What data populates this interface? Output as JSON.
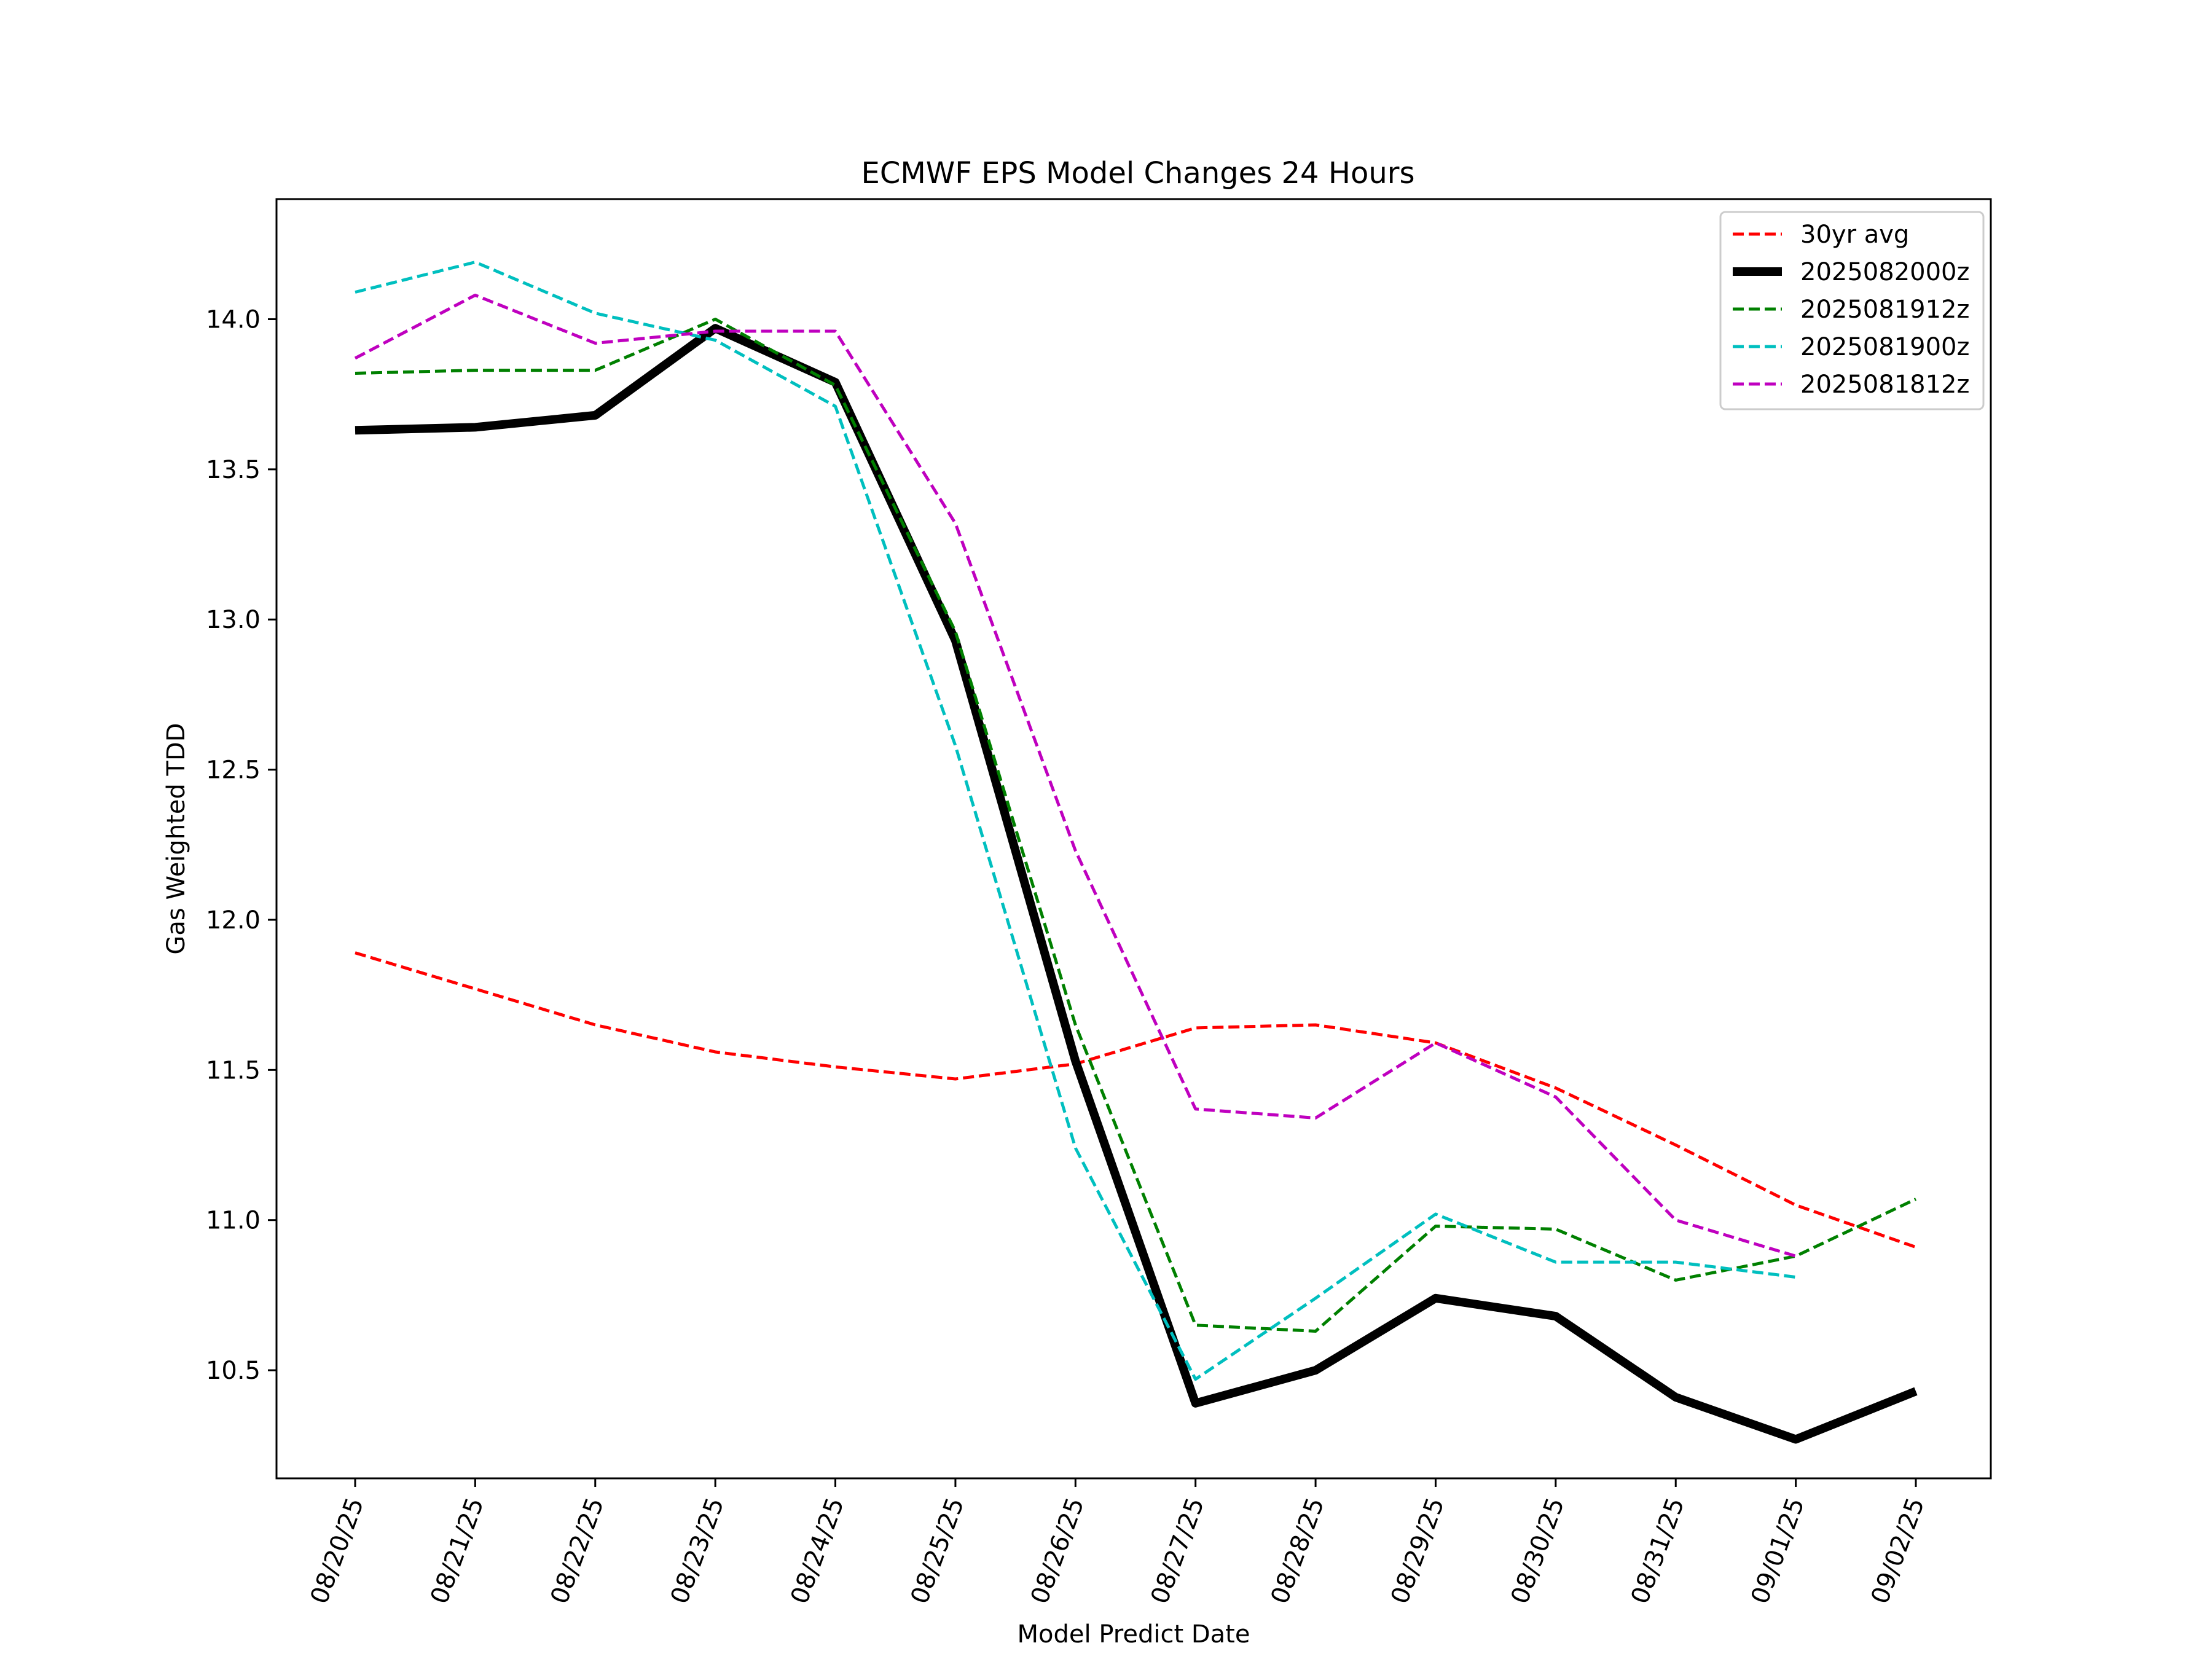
{
  "chart_data": {
    "type": "line",
    "title": "ECMWF EPS Model Changes 24 Hours",
    "xlabel": "Model Predict Date",
    "ylabel": "Gas Weighted TDD",
    "ylim": [
      10.14,
      14.4
    ],
    "yticks": [
      10.5,
      11.0,
      11.5,
      12.0,
      12.5,
      13.0,
      13.5,
      14.0
    ],
    "ytick_labels": [
      "10.5",
      "11.0",
      "11.5",
      "12.0",
      "12.5",
      "13.0",
      "13.5",
      "14.0"
    ],
    "categories": [
      "08/20/25",
      "08/21/25",
      "08/22/25",
      "08/23/25",
      "08/24/25",
      "08/25/25",
      "08/26/25",
      "08/27/25",
      "08/28/25",
      "08/29/25",
      "08/30/25",
      "08/31/25",
      "09/01/25",
      "09/02/25"
    ],
    "legend_position": "top-right",
    "series": [
      {
        "name": "30yr avg",
        "color": "#ff0000",
        "style": "dashed",
        "values": [
          11.89,
          11.77,
          11.65,
          11.56,
          11.51,
          11.47,
          11.52,
          11.64,
          11.65,
          11.59,
          11.44,
          11.25,
          11.05,
          10.91
        ]
      },
      {
        "name": "2025082000z",
        "color": "#000000",
        "style": "solid",
        "values": [
          13.63,
          13.64,
          13.68,
          13.97,
          13.79,
          12.93,
          11.53,
          10.39,
          10.5,
          10.74,
          10.68,
          10.41,
          10.27,
          10.43
        ]
      },
      {
        "name": "2025081912z",
        "color": "#008000",
        "style": "dashed",
        "values": [
          13.82,
          13.83,
          13.83,
          14.0,
          13.78,
          12.96,
          11.65,
          10.65,
          10.63,
          10.98,
          10.97,
          10.8,
          10.88,
          11.07
        ]
      },
      {
        "name": "2025081900z",
        "color": "#00bfbf",
        "style": "dashed",
        "values": [
          14.09,
          14.19,
          14.02,
          13.93,
          13.71,
          12.58,
          11.24,
          10.47,
          10.74,
          11.02,
          10.86,
          10.86,
          10.81,
          null
        ]
      },
      {
        "name": "2025081812z",
        "color": "#bf00bf",
        "style": "dashed",
        "values": [
          13.87,
          14.08,
          13.92,
          13.96,
          13.96,
          13.32,
          12.23,
          11.37,
          11.34,
          11.59,
          11.41,
          11.0,
          10.88,
          null
        ]
      }
    ]
  }
}
